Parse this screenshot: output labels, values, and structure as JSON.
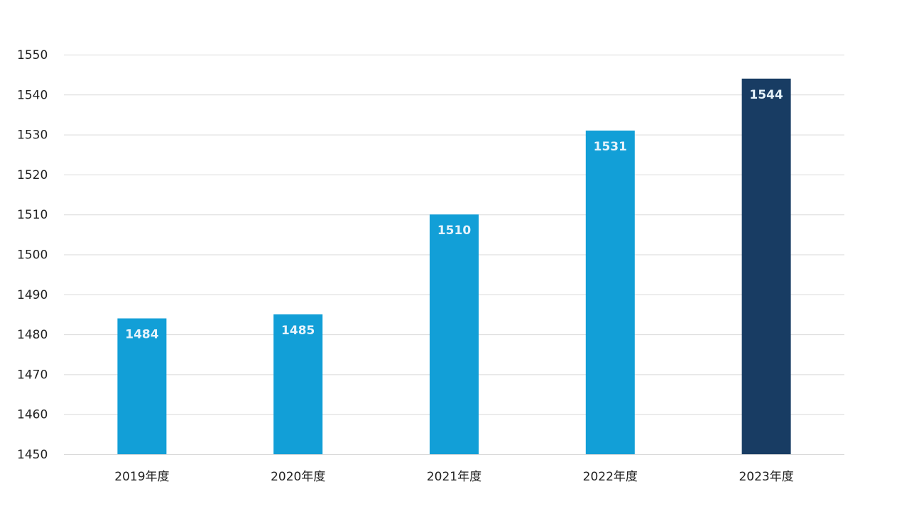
{
  "chart_data": {
    "type": "bar",
    "categories": [
      "2019年度",
      "2020年度",
      "2021年度",
      "2022年度",
      "2023年度"
    ],
    "values": [
      1484,
      1485,
      1510,
      1531,
      1544
    ],
    "title": "",
    "xlabel": "",
    "ylabel": "",
    "ylim": [
      1450,
      1550
    ],
    "yticks": [
      1450,
      1460,
      1470,
      1480,
      1490,
      1500,
      1510,
      1520,
      1530,
      1540,
      1550
    ],
    "grid": true,
    "legend": "none",
    "colors": {
      "bar": "#129fd7",
      "highlight_bar": "#183c63",
      "highlight_index": 4,
      "label": "#e6f3fb",
      "gridline": "#d9d9d9"
    }
  }
}
